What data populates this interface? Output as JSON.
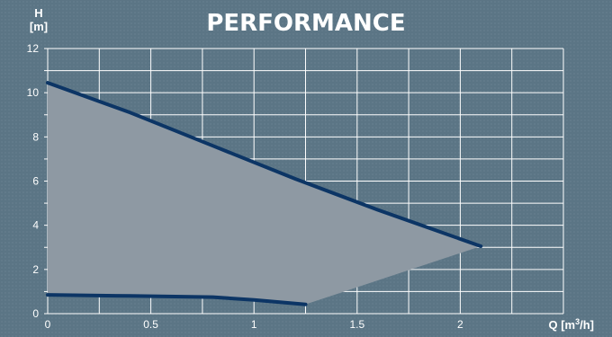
{
  "chart_data": {
    "type": "area",
    "title": "PERFORMANCE",
    "ylabel_line1": "H",
    "ylabel_line2": "[m]",
    "xlabel_prefix": "Q [m",
    "xlabel_sup": "3",
    "xlabel_suffix": "/h]",
    "xlim": [
      0,
      2.5
    ],
    "ylim": [
      0,
      12
    ],
    "x_ticks": [
      {
        "value": 0,
        "label": "0"
      },
      {
        "value": 0.5,
        "label": "0.5"
      },
      {
        "value": 1,
        "label": "1"
      },
      {
        "value": 1.5,
        "label": "1.5"
      },
      {
        "value": 2,
        "label": "2"
      }
    ],
    "y_ticks": [
      {
        "value": 0,
        "label": "0"
      },
      {
        "value": 2,
        "label": "2"
      },
      {
        "value": 4,
        "label": "4"
      },
      {
        "value": 6,
        "label": "6"
      },
      {
        "value": 8,
        "label": "8"
      },
      {
        "value": 10,
        "label": "10"
      },
      {
        "value": 12,
        "label": "12"
      }
    ],
    "grid": true,
    "series": [
      {
        "role": "max-speed-curve",
        "x": [
          0,
          0.4,
          0.8,
          1.2,
          1.6,
          2.1
        ],
        "y": [
          10.45,
          9.1,
          7.6,
          6.1,
          4.7,
          3.05
        ]
      },
      {
        "role": "min-speed-curve",
        "x": [
          0,
          0.4,
          0.8,
          1.0,
          1.25
        ],
        "y": [
          0.85,
          0.8,
          0.75,
          0.62,
          0.42
        ]
      }
    ],
    "colors": {
      "curve": "#0c3565",
      "area_fill": "#8e99a3",
      "grid": "#ffffff",
      "text": "#ffffff"
    }
  }
}
